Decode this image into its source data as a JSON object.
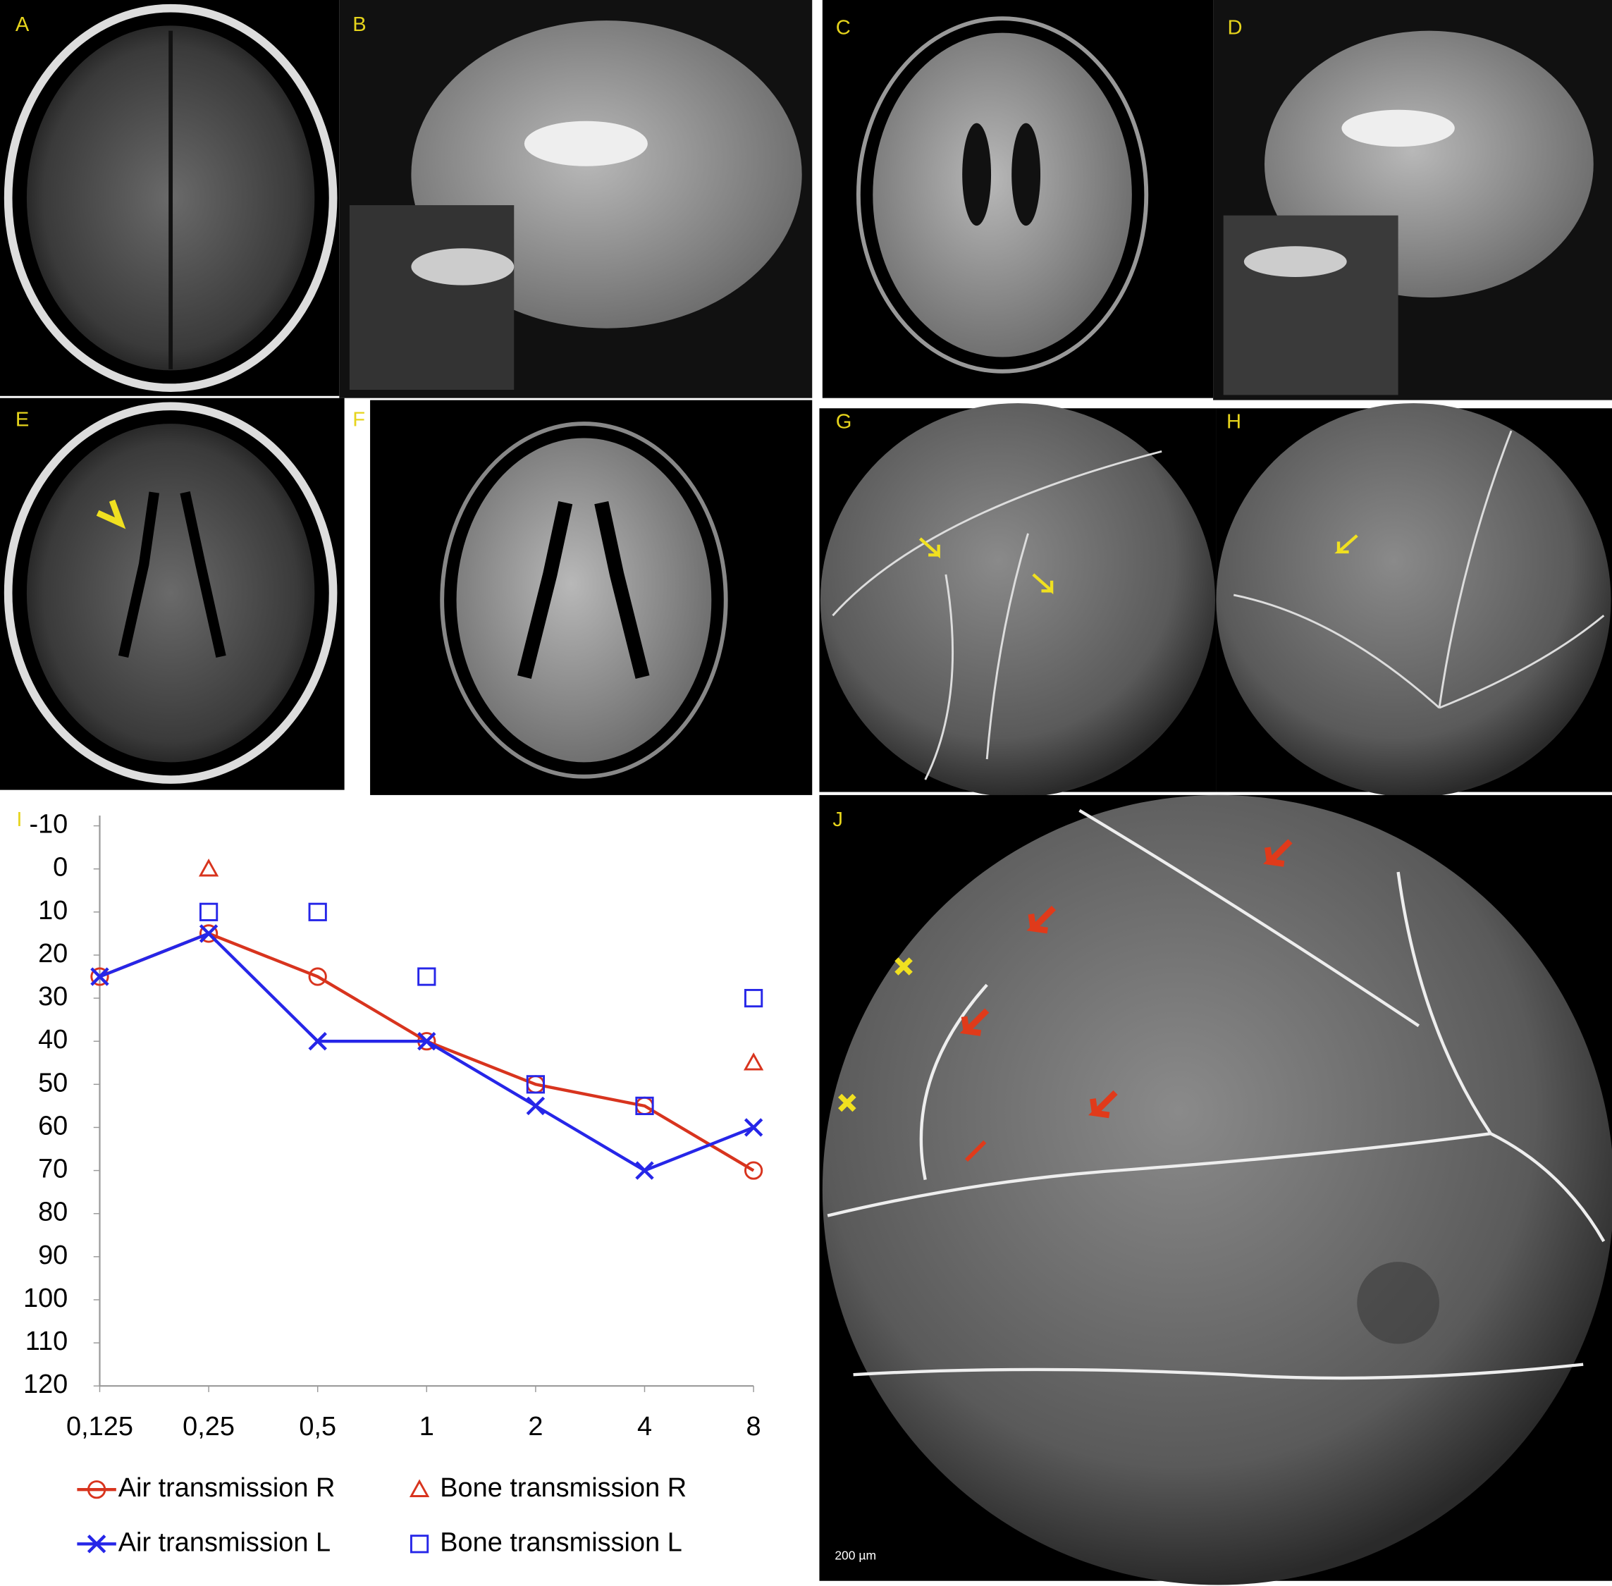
{
  "panels": {
    "a": "A",
    "b": "B",
    "c": "C",
    "d": "D",
    "e": "E",
    "f": "F",
    "g": "G",
    "h": "H",
    "i": "I",
    "j": "J",
    "j_scale": "200 µm"
  },
  "chart_data": {
    "type": "line",
    "categories": [
      "0,125",
      "0,25",
      "0,5",
      "1",
      "2",
      "4",
      "8"
    ],
    "series": [
      {
        "name": "Air transmission R",
        "color": "#d8341e",
        "marker": "circle",
        "line": true,
        "values": [
          25,
          15,
          25,
          40,
          50,
          55,
          70
        ]
      },
      {
        "name": "Bone transmission R",
        "color": "#d8341e",
        "marker": "triangle",
        "line": false,
        "values": [
          null,
          0,
          null,
          null,
          null,
          null,
          45
        ]
      },
      {
        "name": "Air transmission L",
        "color": "#2626e8",
        "marker": "x",
        "line": true,
        "values": [
          25,
          15,
          40,
          40,
          55,
          70,
          60
        ]
      },
      {
        "name": "Bone transmission L",
        "color": "#2626e8",
        "marker": "square",
        "line": false,
        "values": [
          null,
          10,
          10,
          25,
          50,
          55,
          30
        ]
      }
    ],
    "ylim": [
      -10,
      120
    ],
    "y_inverted": true,
    "yticks": [
      -10,
      0,
      10,
      20,
      30,
      40,
      50,
      60,
      70,
      80,
      90,
      100,
      110,
      120
    ],
    "grid": false
  }
}
